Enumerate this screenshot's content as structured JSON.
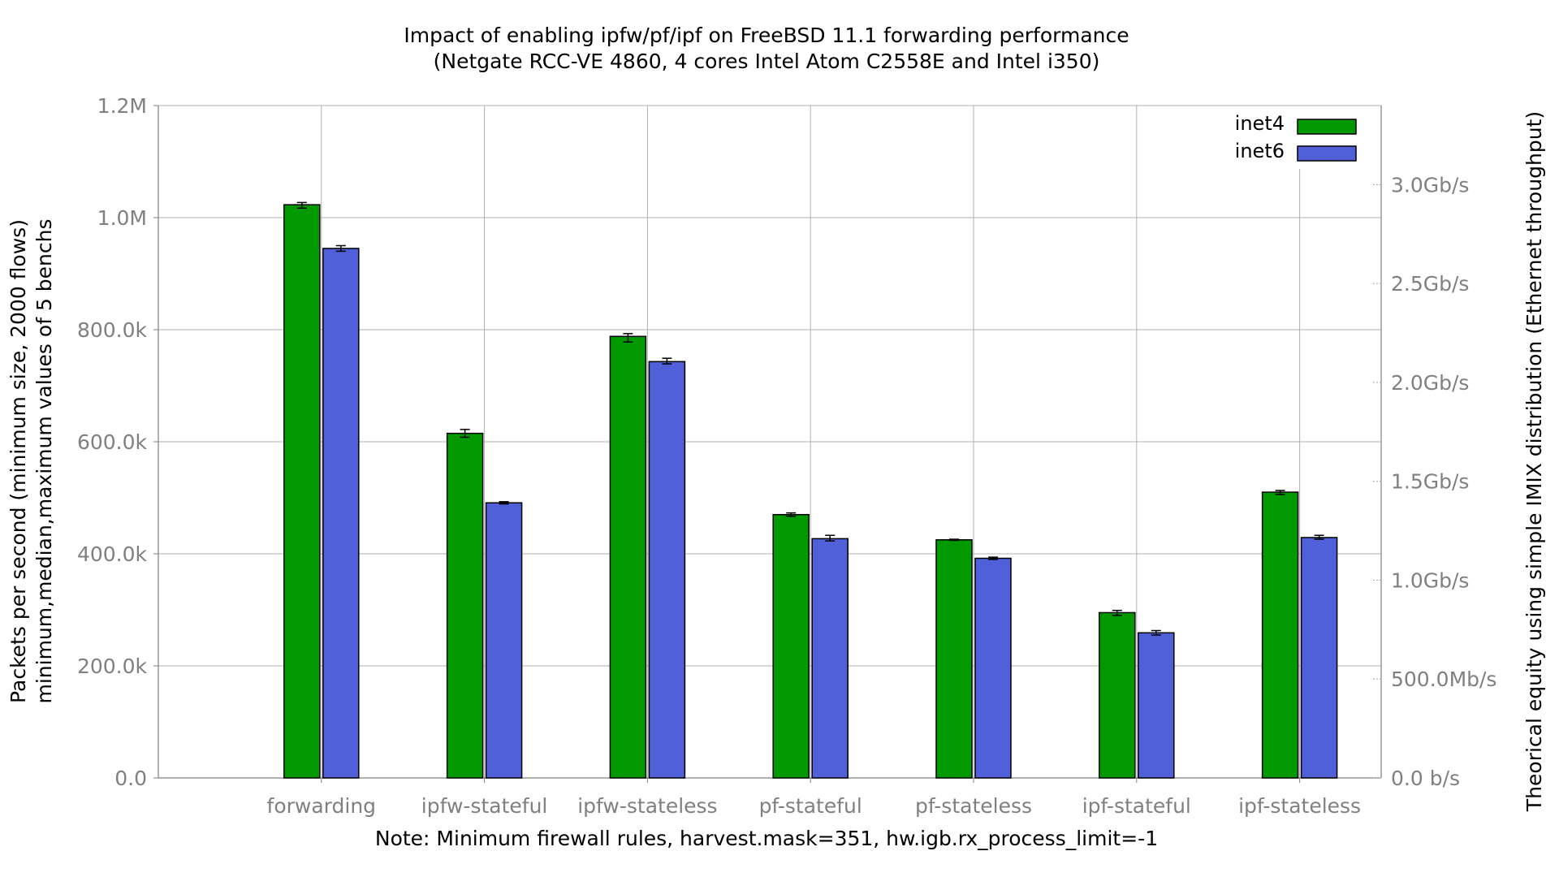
{
  "chart_data": {
    "type": "bar",
    "title": "Impact of enabling ipfw/pf/ipf on FreeBSD 11.1 forwarding performance",
    "subtitle": "(Netgate RCC-VE 4860, 4 cores Intel Atom C2558E and Intel i350)",
    "ylabel": "Packets per second (minimum size, 2000 flows)",
    "ylabel2": "minimum,median,maximum values of 5 benchs",
    "y2label": "Theorical equity using simple IMIX distribution (Ethernet throughput)",
    "xlabel": "Note: Minimum firewall rules, harvest.mask=351, hw.igb.rx_process_limit=-1",
    "ylim": [
      0,
      1200000
    ],
    "yticks": [
      {
        "value": 0,
        "label": "0.0"
      },
      {
        "value": 200000,
        "label": "200.0k"
      },
      {
        "value": 400000,
        "label": "400.0k"
      },
      {
        "value": 600000,
        "label": "600.0k"
      },
      {
        "value": 800000,
        "label": "800.0k"
      },
      {
        "value": 1000000,
        "label": "1.0M"
      },
      {
        "value": 1200000,
        "label": "1.2M"
      }
    ],
    "y2lim": [
      0,
      3400000000
    ],
    "y2ticks": [
      {
        "value": 0,
        "label": "0.0 b/s"
      },
      {
        "value": 500000000,
        "label": "500.0Mb/s"
      },
      {
        "value": 1000000000,
        "label": "1.0Gb/s"
      },
      {
        "value": 1500000000,
        "label": "1.5Gb/s"
      },
      {
        "value": 2000000000,
        "label": "2.0Gb/s"
      },
      {
        "value": 2500000000,
        "label": "2.5Gb/s"
      },
      {
        "value": 3000000000,
        "label": "3.0Gb/s"
      }
    ],
    "categories": [
      "forwarding",
      "ipfw-stateful",
      "ipfw-stateless",
      "pf-stateful",
      "pf-stateless",
      "ipf-stateful",
      "ipf-stateless"
    ],
    "series": [
      {
        "name": "inet4",
        "color": "#009900",
        "values": [
          1023000,
          615000,
          788000,
          470000,
          425000,
          295000,
          510000
        ],
        "min": [
          1017000,
          608000,
          778000,
          467000,
          424000,
          290000,
          506000
        ],
        "max": [
          1027000,
          622000,
          793000,
          473000,
          426000,
          299000,
          513000
        ]
      },
      {
        "name": "inet6",
        "color": "#5060d8",
        "values": [
          945000,
          491000,
          743000,
          427000,
          392000,
          259000,
          429000
        ],
        "min": [
          940000,
          489000,
          739000,
          423000,
          390000,
          255000,
          426000
        ],
        "max": [
          950000,
          493000,
          749000,
          433000,
          394000,
          263000,
          433000
        ]
      }
    ],
    "legend_position": "top-right",
    "grid": true
  }
}
